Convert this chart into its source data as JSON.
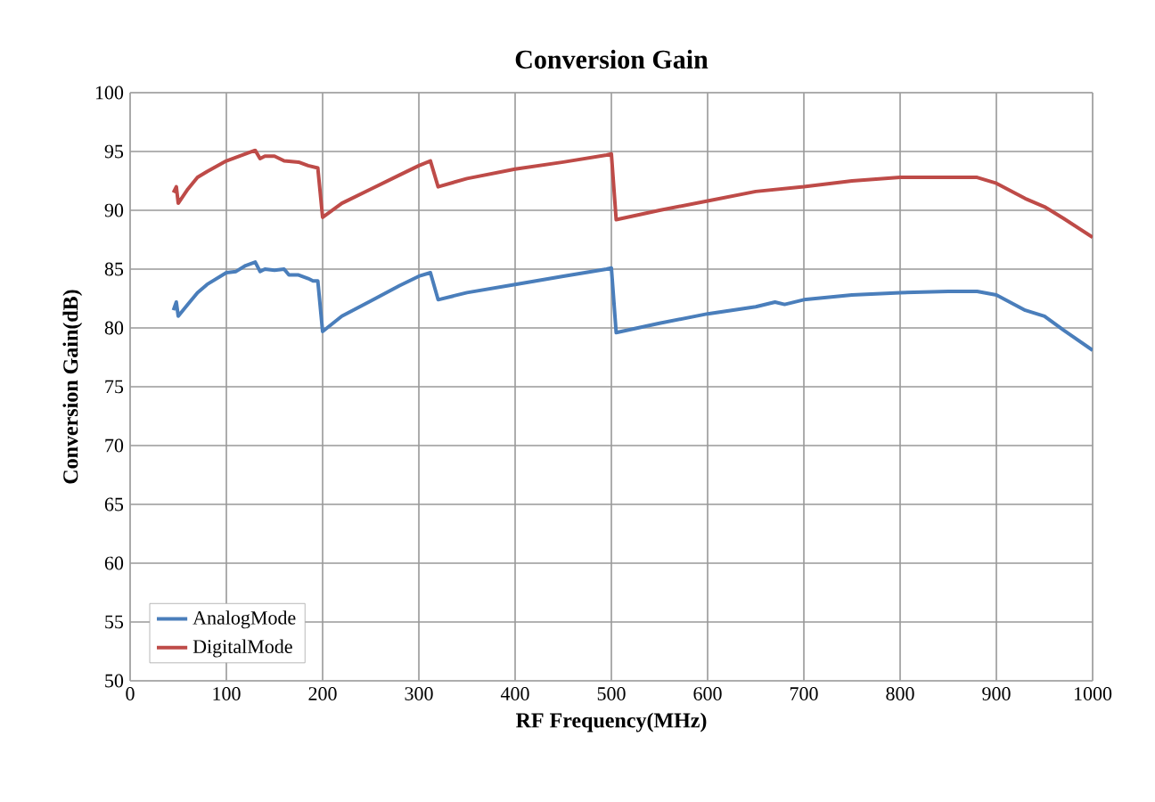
{
  "chart_data": {
    "type": "line",
    "title": "Conversion Gain",
    "xlabel": "RF Frequency(MHz)",
    "ylabel": "Conversion Gain(dB)",
    "xlim": [
      0,
      1000
    ],
    "xticks": [
      0,
      100,
      200,
      300,
      400,
      500,
      600,
      700,
      800,
      900,
      1000
    ],
    "ylim": [
      50,
      100
    ],
    "yticks": [
      50,
      55,
      60,
      65,
      70,
      75,
      80,
      85,
      90,
      95,
      100
    ],
    "grid": true,
    "legend": "bottom left",
    "marker": "none",
    "line_style": "solid",
    "series": [
      {
        "name": "AnalogMode",
        "color": "#4a7ebb",
        "x": [
          45,
          48,
          50,
          60,
          70,
          80,
          100,
          110,
          120,
          130,
          135,
          140,
          150,
          160,
          165,
          175,
          185,
          190,
          195,
          200,
          220,
          250,
          280,
          300,
          312,
          320,
          350,
          400,
          450,
          495,
          500,
          505,
          550,
          600,
          650,
          670,
          680,
          700,
          750,
          800,
          850,
          880,
          900,
          930,
          950,
          970,
          1000
        ],
        "values": [
          81.5,
          82.2,
          81,
          82,
          83,
          83.7,
          84.7,
          84.8,
          85.3,
          85.6,
          84.8,
          85,
          84.9,
          85,
          84.5,
          84.5,
          84.2,
          84,
          84,
          79.7,
          81,
          82.3,
          83.6,
          84.4,
          84.7,
          82.4,
          83,
          83.7,
          84.4,
          85,
          85.1,
          79.6,
          80.4,
          81.2,
          81.8,
          82.2,
          82,
          82.4,
          82.8,
          83,
          83.1,
          83.1,
          82.8,
          81.5,
          81,
          79.8,
          78.1
        ]
      },
      {
        "name": "DigitalMode",
        "color": "#be4b48",
        "x": [
          45,
          48,
          50,
          60,
          70,
          80,
          100,
          110,
          120,
          130,
          135,
          140,
          150,
          160,
          175,
          185,
          195,
          200,
          220,
          250,
          280,
          300,
          312,
          320,
          350,
          400,
          450,
          495,
          500,
          505,
          550,
          600,
          650,
          700,
          750,
          800,
          850,
          880,
          900,
          930,
          950,
          970,
          1000
        ],
        "values": [
          91.5,
          92,
          90.6,
          91.8,
          92.8,
          93.3,
          94.2,
          94.5,
          94.8,
          95.1,
          94.4,
          94.6,
          94.6,
          94.2,
          94.1,
          93.8,
          93.6,
          89.4,
          90.6,
          91.8,
          93,
          93.8,
          94.2,
          92,
          92.7,
          93.5,
          94.1,
          94.7,
          94.8,
          89.2,
          90,
          90.8,
          91.6,
          92,
          92.5,
          92.8,
          92.8,
          92.8,
          92.3,
          91,
          90.3,
          89.3,
          87.7
        ]
      }
    ]
  }
}
